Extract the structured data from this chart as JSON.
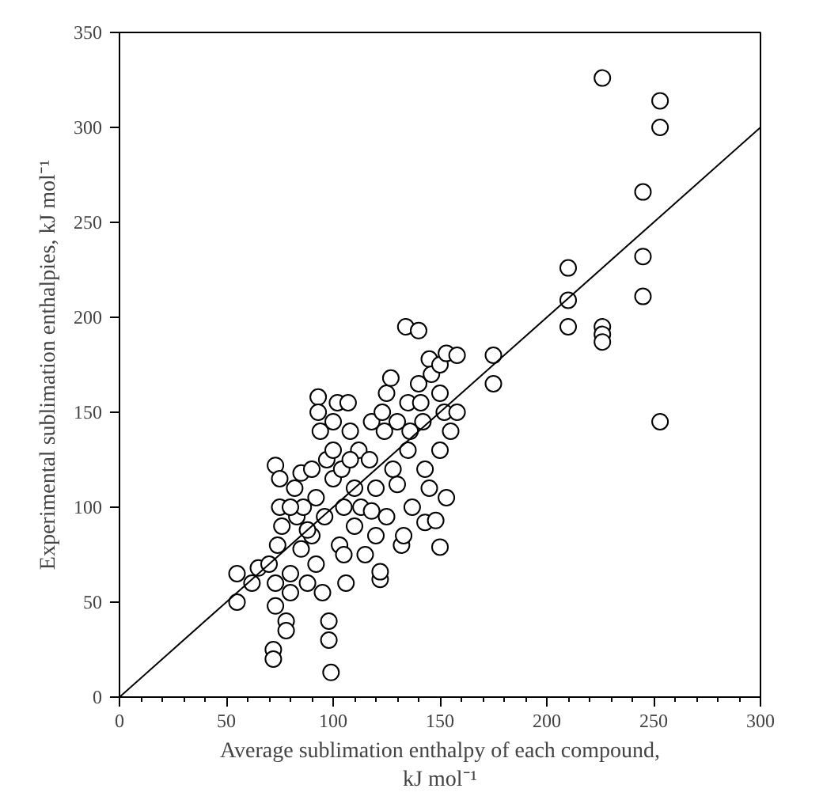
{
  "chart_data": {
    "type": "scatter",
    "xlabel": "Average sublimation enthalpy of each compound,\nkJ mol⁻¹",
    "ylabel": "Experimental sublimation enthalpies, kJ mol⁻¹",
    "xlim": [
      0,
      300
    ],
    "ylim": [
      0,
      350
    ],
    "xticks": [
      0,
      50,
      100,
      150,
      200,
      250,
      300
    ],
    "yticks": [
      0,
      50,
      100,
      150,
      200,
      250,
      300,
      350
    ],
    "grid": false,
    "series": [
      {
        "color": "#000000",
        "marker": "circle",
        "x": [
          226,
          253,
          253,
          245,
          210,
          245,
          210,
          245,
          210,
          226,
          226,
          226,
          253,
          55,
          55,
          62,
          65,
          70,
          72,
          72,
          73,
          73,
          74,
          73,
          75,
          75,
          76,
          78,
          78,
          80,
          80,
          82,
          83,
          85,
          85,
          86,
          88,
          90,
          92,
          92,
          93,
          93,
          94,
          95,
          96,
          97,
          98,
          98,
          99,
          100,
          100,
          100,
          102,
          103,
          104,
          105,
          105,
          106,
          107,
          108,
          110,
          110,
          112,
          113,
          115,
          117,
          118,
          120,
          120,
          122,
          122,
          123,
          124,
          125,
          125,
          127,
          128,
          130,
          132,
          133,
          134,
          135,
          135,
          136,
          137,
          140,
          141,
          142,
          143,
          143,
          145,
          145,
          146,
          148,
          150,
          150,
          150,
          150,
          152,
          153,
          153,
          155,
          158,
          158,
          175,
          175,
          140,
          130,
          118,
          108,
          88,
          80,
          90
        ],
        "values": [
          326,
          314,
          300,
          266,
          226,
          232,
          209,
          211,
          195,
          195,
          191,
          187,
          145,
          50,
          65,
          60,
          68,
          70,
          25,
          20,
          48,
          60,
          80,
          122,
          115,
          100,
          90,
          40,
          35,
          55,
          65,
          110,
          95,
          118,
          78,
          100,
          60,
          85,
          105,
          70,
          158,
          150,
          140,
          55,
          95,
          125,
          40,
          30,
          13,
          130,
          115,
          145,
          155,
          80,
          120,
          100,
          75,
          60,
          155,
          140,
          110,
          90,
          130,
          100,
          75,
          125,
          145,
          85,
          110,
          62,
          66,
          150,
          140,
          160,
          95,
          168,
          120,
          112,
          80,
          85,
          195,
          155,
          130,
          140,
          100,
          193,
          155,
          145,
          120,
          92,
          110,
          178,
          170,
          93,
          175,
          160,
          130,
          79,
          150,
          181,
          105,
          140,
          180,
          150,
          180,
          165,
          165,
          145,
          98,
          125,
          88,
          100,
          120
        ]
      },
      {
        "type": "line",
        "color": "#000000",
        "line_style": "solid",
        "x": [
          0,
          300
        ],
        "values": [
          0,
          300
        ]
      }
    ]
  }
}
